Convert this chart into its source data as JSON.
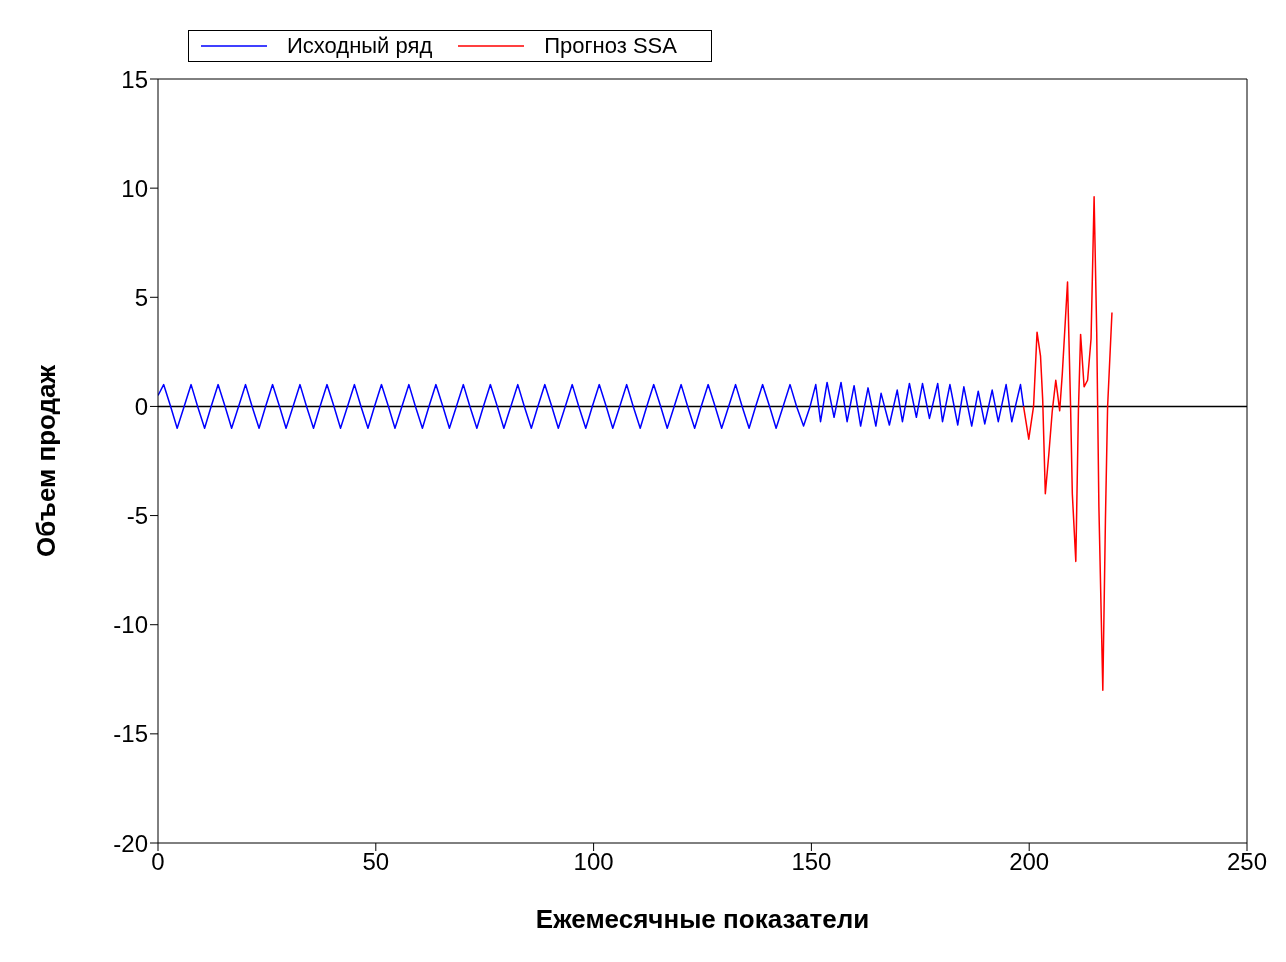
{
  "chart_data": {
    "type": "line",
    "xlabel": "Ежемесячные показатели",
    "ylabel": "Объем продаж",
    "xlim": [
      0,
      250
    ],
    "xticks": [
      0,
      50,
      100,
      150,
      200,
      250
    ],
    "ylim": [
      -20,
      15
    ],
    "yticks": [
      -20,
      -15,
      -10,
      -5,
      0,
      5,
      10,
      15
    ],
    "grid": false,
    "legend": "top left",
    "marker": "none",
    "line_style": "solid",
    "ref_lines": [
      {
        "axis": "y",
        "value": 0,
        "color": "#000000"
      }
    ],
    "series": [
      {
        "name": "Исходный ряд",
        "color": "#0000ff",
        "x": [
          0,
          1.3,
          2.9,
          4.4,
          6.0,
          7.6,
          9.1,
          10.7,
          12.2,
          13.8,
          15.4,
          16.9,
          18.5,
          20.1,
          21.6,
          23.2,
          24.7,
          26.3,
          27.9,
          29.4,
          31.0,
          32.6,
          34.1,
          35.7,
          37.2,
          38.8,
          40.4,
          41.9,
          43.5,
          45.1,
          46.6,
          48.2,
          49.7,
          51.3,
          52.9,
          54.4,
          56.0,
          57.6,
          59.1,
          60.7,
          62.2,
          63.8,
          65.4,
          66.9,
          68.5,
          70.1,
          71.6,
          73.2,
          74.7,
          76.3,
          77.9,
          79.4,
          81.0,
          82.6,
          84.1,
          85.7,
          87.2,
          88.8,
          90.4,
          91.9,
          93.5,
          95.1,
          96.6,
          98.2,
          99.7,
          101.3,
          102.9,
          104.4,
          106.0,
          107.6,
          109.1,
          110.7,
          112.2,
          113.8,
          115.4,
          116.9,
          118.5,
          120.1,
          121.6,
          123.2,
          124.7,
          126.3,
          127.9,
          129.4,
          131.0,
          132.6,
          134.1,
          135.7,
          137.2,
          138.8,
          140.4,
          141.9,
          143.5,
          145.1,
          146.6,
          148.2,
          149.7,
          151.0,
          152.1,
          153.6,
          155.2,
          156.8,
          158.2,
          159.8,
          161.3,
          163.0,
          164.8,
          166.0,
          167.9,
          169.7,
          170.9,
          172.5,
          174.1,
          175.5,
          177.1,
          179.0,
          180.1,
          181.8,
          183.6,
          185.0,
          186.8,
          188.3,
          189.8,
          191.5,
          192.9,
          194.7,
          196.0,
          198.0,
          198.7
        ],
        "values": [
          0.5,
          1,
          0,
          -1,
          0,
          1,
          0,
          -1,
          0,
          1,
          0,
          -1,
          0,
          1,
          0,
          -1,
          0,
          1,
          0,
          -1,
          0,
          1,
          0,
          -1,
          0,
          1,
          0,
          -1,
          0,
          1,
          0,
          -1,
          0,
          1,
          0,
          -1,
          0,
          1,
          0,
          -1,
          0,
          1,
          0,
          -1,
          0,
          1,
          0,
          -1,
          0,
          1,
          0,
          -1,
          0,
          1,
          0,
          -1,
          0,
          1,
          0,
          -1,
          0,
          1,
          0,
          -1,
          0,
          1,
          0,
          -1,
          0,
          1,
          0,
          -1,
          0,
          1,
          0,
          -1,
          0,
          1,
          0,
          -1,
          0,
          1,
          0,
          -1,
          0,
          1,
          0,
          -1,
          0,
          1,
          0,
          -1,
          0,
          1,
          0,
          -0.9,
          0,
          1.0,
          -0.7,
          1.1,
          -0.5,
          1.1,
          -0.7,
          0.95,
          -0.9,
          0.85,
          -0.9,
          0.6,
          -0.85,
          0.75,
          -0.7,
          1.05,
          -0.5,
          1.05,
          -0.55,
          1.05,
          -0.7,
          1.0,
          -0.85,
          0.9,
          -0.9,
          0.7,
          -0.8,
          0.75,
          -0.7,
          1.0,
          -0.7,
          1.0,
          0
        ]
      },
      {
        "name": "Прогноз SSA",
        "color": "#ff0000",
        "x": [
          198.7,
          199.9,
          201.0,
          201.8,
          202.6,
          203.1,
          203.7,
          204.5,
          205.3,
          206.1,
          206.5,
          207.0,
          207.6,
          208.8,
          209.5,
          209.9,
          210.7,
          211.3,
          211.8,
          212.6,
          213.4,
          214.2,
          214.9,
          215.5,
          216.0,
          216.9,
          217.5,
          218.0,
          219.0
        ],
        "values": [
          0,
          -1.5,
          0,
          3.4,
          2.3,
          0.3,
          -4.0,
          -2.2,
          -0.2,
          1.2,
          0.6,
          -0.2,
          1.5,
          5.7,
          0,
          -4.0,
          -7.1,
          -0.2,
          3.3,
          0.9,
          1.2,
          3.1,
          9.6,
          3.4,
          -4.6,
          -13.0,
          -5.2,
          0,
          4.3
        ]
      }
    ]
  }
}
